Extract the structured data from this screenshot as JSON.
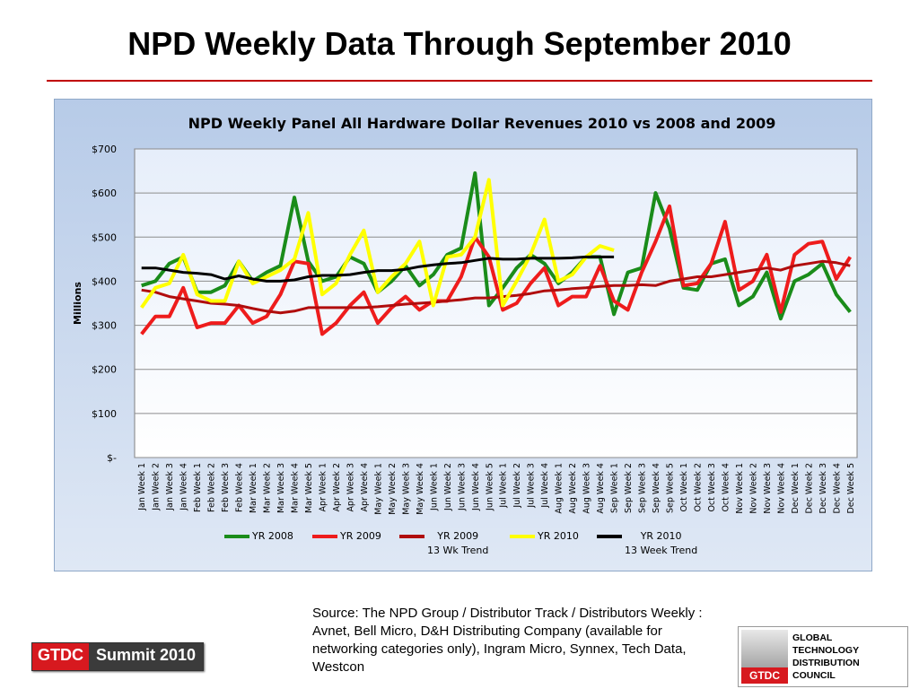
{
  "slide": {
    "title": "NPD Weekly Data Through September 2010",
    "source": "Source: The NPD Group / Distributor Track / Distributors Weekly : Avnet, Bell Micro, D&H Distributing Company (available for networking categories only), Ingram Micro, Synnex, Tech Data, Westcon",
    "badge_left": "GTDC",
    "badge_right": "Summit 2010",
    "council_lines": [
      "GLOBAL",
      "TECHNOLOGY",
      "DISTRIBUTION",
      "COUNCIL"
    ],
    "council_badge": "GTDC"
  },
  "chart_data": {
    "type": "line",
    "title": "NPD Weekly Panel All Hardware Dollar Revenues 2010 vs 2008 and 2009",
    "ylabel": "Millions",
    "categories": [
      "Jan Week 1",
      "Jan Week 2",
      "Jan Week 3",
      "Jan Week 4",
      "Feb Week 1",
      "Feb Week 2",
      "Feb Week 3",
      "Feb Week 4",
      "Mar Week 1",
      "Mar Week 2",
      "Mar Week 3",
      "Mar Week 4",
      "Mar Week 5",
      "Apr Week 1",
      "Apr Week 2",
      "Apr Week 3",
      "Apr Week 4",
      "May Week 1",
      "May Week 2",
      "May Week 3",
      "May Week 4",
      "Jun Week 1",
      "Jun Week 2",
      "Jun Week 3",
      "Jun Week 4",
      "Jun Week 5",
      "Jul Week 1",
      "Jul Week 2",
      "Jul Week 3",
      "Jul Week 4",
      "Aug Week 1",
      "Aug Week 2",
      "Aug Week 3",
      "Aug Week 4",
      "Sep Week 1",
      "Sep Week 2",
      "Sep Week 3",
      "Sep Week 4",
      "Sep Week 5",
      "Oct Week 1",
      "Oct Week 2",
      "Oct Week 3",
      "Oct Week 4",
      "Nov Week 1",
      "Nov Week 2",
      "Nov Week 3",
      "Nov Week 4",
      "Dec Week 1",
      "Dec Week 2",
      "Dec Week 3",
      "Dec Week 4",
      "Dec Week 5"
    ],
    "series": [
      {
        "name": "YR 2008",
        "color": "#1a8c1a",
        "width": 4,
        "values": [
          390,
          400,
          440,
          455,
          375,
          375,
          390,
          445,
          400,
          420,
          435,
          590,
          445,
          400,
          410,
          455,
          440,
          375,
          400,
          435,
          390,
          415,
          460,
          475,
          645,
          345,
          385,
          430,
          460,
          440,
          395,
          420,
          455,
          455,
          325,
          420,
          430,
          600,
          520,
          385,
          380,
          440,
          450,
          345,
          365,
          420,
          315,
          400,
          415,
          440,
          370,
          330
        ]
      },
      {
        "name": "YR 2009",
        "color": "#ee1c1c",
        "width": 4,
        "values": [
          280,
          320,
          320,
          385,
          295,
          305,
          305,
          345,
          305,
          320,
          370,
          445,
          440,
          280,
          305,
          345,
          375,
          305,
          340,
          365,
          335,
          355,
          355,
          410,
          500,
          455,
          335,
          350,
          395,
          430,
          345,
          365,
          365,
          435,
          355,
          335,
          420,
          490,
          570,
          390,
          395,
          440,
          535,
          380,
          400,
          460,
          330,
          460,
          485,
          490,
          405,
          455
        ]
      },
      {
        "name": "YR 2009\n13 Wk Trend",
        "color": "#b00d0d",
        "width": 3,
        "values": [
          380,
          375,
          365,
          360,
          355,
          350,
          348,
          345,
          338,
          332,
          328,
          332,
          340,
          340,
          340,
          340,
          340,
          342,
          345,
          348,
          350,
          352,
          355,
          358,
          362,
          362,
          365,
          368,
          372,
          378,
          380,
          383,
          385,
          388,
          390,
          390,
          392,
          390,
          400,
          405,
          410,
          410,
          415,
          420,
          425,
          430,
          425,
          435,
          440,
          445,
          442,
          435
        ]
      },
      {
        "name": "YR 2010",
        "color": "#ffff00",
        "width": 4,
        "values": [
          340,
          385,
          395,
          460,
          370,
          355,
          355,
          445,
          395,
          410,
          425,
          450,
          555,
          370,
          395,
          460,
          515,
          375,
          410,
          440,
          490,
          345,
          455,
          460,
          500,
          630,
          345,
          400,
          460,
          540,
          400,
          415,
          455,
          480,
          470,
          null,
          null,
          null,
          null,
          null,
          null,
          null,
          null,
          null,
          null,
          null,
          null,
          null,
          null,
          null,
          null,
          null
        ]
      },
      {
        "name": "YR 2010\n13 Week Trend",
        "color": "#000000",
        "width": 3,
        "values": [
          430,
          430,
          425,
          420,
          418,
          415,
          405,
          412,
          405,
          400,
          400,
          403,
          410,
          413,
          413,
          415,
          420,
          424,
          424,
          427,
          433,
          437,
          440,
          442,
          447,
          452,
          450,
          450,
          452,
          452,
          452,
          453,
          455,
          455,
          455,
          null,
          null,
          null,
          null,
          null,
          null,
          null,
          null,
          null,
          null,
          null,
          null,
          null,
          null,
          null,
          null,
          null
        ]
      }
    ],
    "ylim": [
      0,
      700
    ],
    "yticks": [
      {
        "value": 0,
        "label": "$-"
      },
      {
        "value": 100,
        "label": "$100"
      },
      {
        "value": 200,
        "label": "$200"
      },
      {
        "value": 300,
        "label": "$300"
      },
      {
        "value": 400,
        "label": "$400"
      },
      {
        "value": 500,
        "label": "$500"
      },
      {
        "value": 600,
        "label": "$600"
      },
      {
        "value": 700,
        "label": "$700"
      }
    ],
    "grid": true,
    "legend": "bottom"
  }
}
